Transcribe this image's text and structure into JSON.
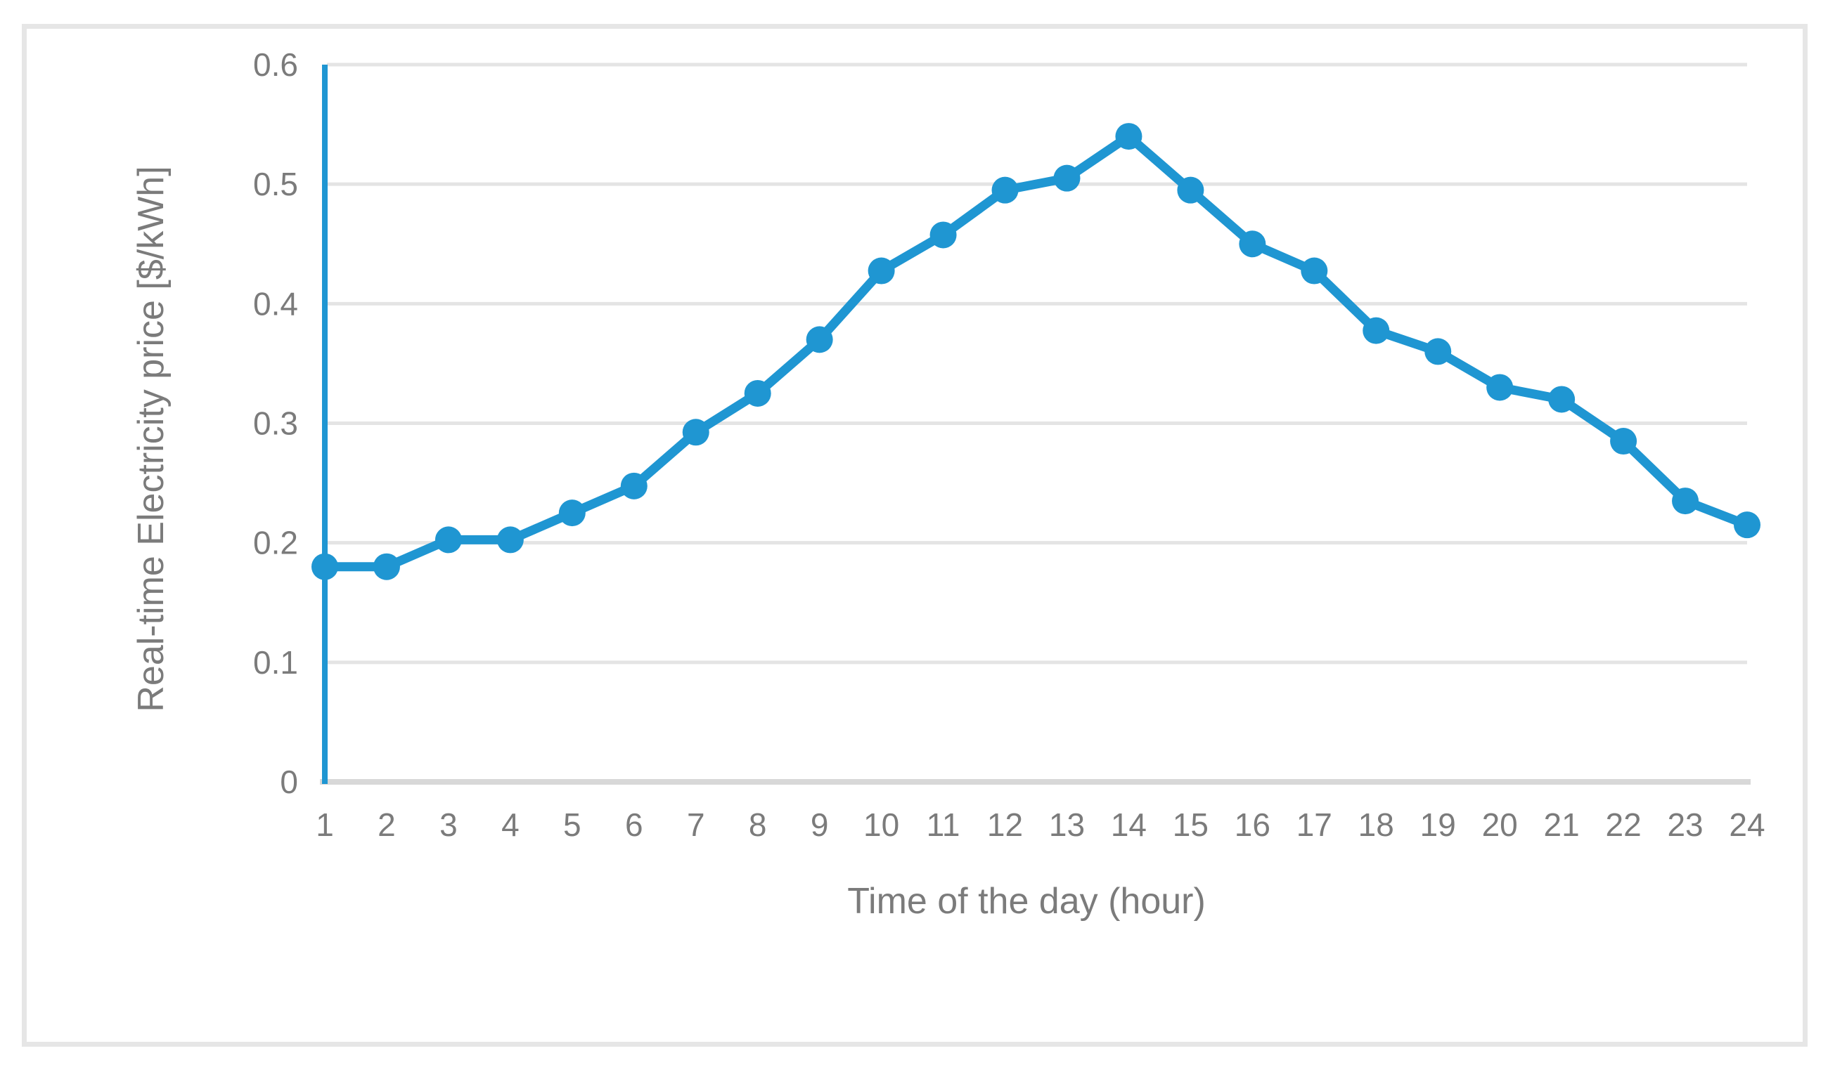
{
  "chart_data": {
    "type": "line",
    "title": "",
    "xlabel": "Time of the day (hour)",
    "ylabel": "Real-time Electricity price [$/kWh]",
    "x": [
      1,
      2,
      3,
      4,
      5,
      6,
      7,
      8,
      9,
      10,
      11,
      12,
      13,
      14,
      15,
      16,
      17,
      18,
      19,
      20,
      21,
      22,
      23,
      24
    ],
    "values": [
      0.18,
      0.18,
      0.2025,
      0.2025,
      0.225,
      0.2475,
      0.2925,
      0.325,
      0.37,
      0.4275,
      0.4575,
      0.495,
      0.505,
      0.54,
      0.495,
      0.45,
      0.4275,
      0.3775,
      0.36,
      0.33,
      0.32,
      0.285,
      0.235,
      0.215
    ],
    "ylim": [
      0,
      0.6
    ],
    "yticks": [
      0,
      0.1,
      0.2,
      0.3,
      0.4,
      0.5,
      0.6
    ],
    "ytick_labels": [
      "0",
      "0.1",
      "0.2",
      "0.3",
      "0.4",
      "0.5",
      "0.6"
    ],
    "xtick_labels": [
      "1",
      "2",
      "3",
      "4",
      "5",
      "6",
      "7",
      "8",
      "9",
      "10",
      "11",
      "12",
      "13",
      "14",
      "15",
      "16",
      "17",
      "18",
      "19",
      "20",
      "21",
      "22",
      "23",
      "24"
    ],
    "grid": "horizontal",
    "legend_position": "none",
    "marker": "circle",
    "colors": {
      "series": "#1F96D2",
      "y_axis_line": "#1F96D2",
      "x_axis_line": "#D8D8D8",
      "gridline": "#E4E4E4",
      "tick_labels": "#7B7B7B",
      "axis_titles": "#7B7B7B",
      "frame": "#E6E6E6",
      "background": "#FFFFFF"
    }
  }
}
